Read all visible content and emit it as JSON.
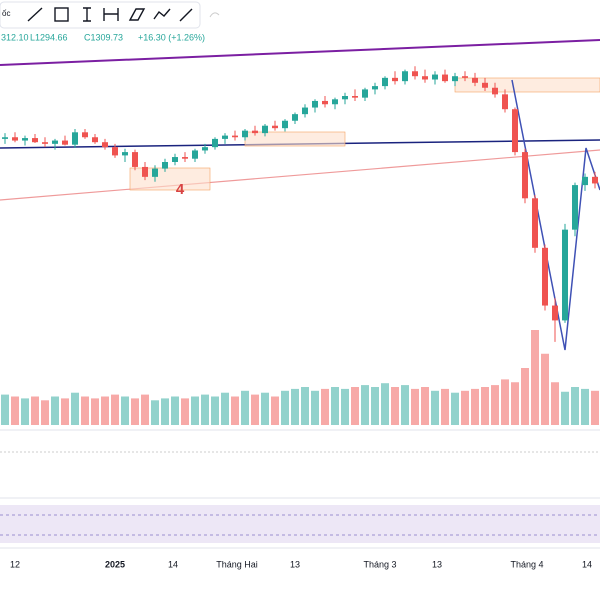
{
  "header": {
    "cut_text": "ốc",
    "high": "312.10",
    "low": "L1294.66",
    "close": "C1309.73",
    "change": "+16.30 (+1.26%)"
  },
  "annotation": "4",
  "x_labels": [
    "12",
    "2025",
    "14",
    "Tháng Hai",
    "13",
    "Tháng 3",
    "13",
    "Tháng 4",
    "14"
  ],
  "chart_data": {
    "type": "candlestick",
    "ylim": [
      1000,
      1400
    ],
    "volume_ylim": [
      0,
      100
    ],
    "up_color": "#26a69a",
    "down_color": "#ef5350",
    "candles": [
      [
        1268,
        1275,
        1262,
        1270
      ],
      [
        1270,
        1276,
        1264,
        1266
      ],
      [
        1266,
        1272,
        1260,
        1269
      ],
      [
        1269,
        1274,
        1263,
        1264
      ],
      [
        1264,
        1270,
        1258,
        1262
      ],
      [
        1262,
        1268,
        1255,
        1266
      ],
      [
        1266,
        1272,
        1260,
        1261
      ],
      [
        1261,
        1280,
        1257,
        1276
      ],
      [
        1276,
        1280,
        1268,
        1270
      ],
      [
        1270,
        1274,
        1262,
        1264
      ],
      [
        1264,
        1268,
        1255,
        1258
      ],
      [
        1258,
        1262,
        1245,
        1248
      ],
      [
        1248,
        1256,
        1240,
        1252
      ],
      [
        1252,
        1255,
        1230,
        1234
      ],
      [
        1234,
        1240,
        1218,
        1222
      ],
      [
        1222,
        1236,
        1216,
        1232
      ],
      [
        1232,
        1244,
        1228,
        1240
      ],
      [
        1240,
        1250,
        1236,
        1246
      ],
      [
        1246,
        1252,
        1240,
        1244
      ],
      [
        1244,
        1256,
        1240,
        1254
      ],
      [
        1254,
        1262,
        1250,
        1258
      ],
      [
        1258,
        1270,
        1255,
        1268
      ],
      [
        1268,
        1275,
        1262,
        1272
      ],
      [
        1272,
        1278,
        1266,
        1270
      ],
      [
        1270,
        1280,
        1266,
        1278
      ],
      [
        1278,
        1284,
        1272,
        1275
      ],
      [
        1275,
        1286,
        1271,
        1284
      ],
      [
        1284,
        1290,
        1278,
        1281
      ],
      [
        1281,
        1292,
        1277,
        1290
      ],
      [
        1290,
        1300,
        1286,
        1298
      ],
      [
        1298,
        1310,
        1294,
        1306
      ],
      [
        1306,
        1316,
        1300,
        1314
      ],
      [
        1314,
        1320,
        1306,
        1310
      ],
      [
        1310,
        1318,
        1304,
        1316
      ],
      [
        1316,
        1324,
        1310,
        1320
      ],
      [
        1320,
        1328,
        1314,
        1318
      ],
      [
        1318,
        1330,
        1314,
        1328
      ],
      [
        1328,
        1336,
        1322,
        1332
      ],
      [
        1332,
        1344,
        1328,
        1342
      ],
      [
        1342,
        1350,
        1334,
        1338
      ],
      [
        1338,
        1352,
        1334,
        1350
      ],
      [
        1350,
        1356,
        1340,
        1344
      ],
      [
        1344,
        1352,
        1336,
        1340
      ],
      [
        1340,
        1350,
        1334,
        1346
      ],
      [
        1346,
        1352,
        1336,
        1338
      ],
      [
        1338,
        1348,
        1332,
        1344
      ],
      [
        1344,
        1350,
        1338,
        1342
      ],
      [
        1342,
        1348,
        1332,
        1336
      ],
      [
        1336,
        1342,
        1326,
        1330
      ],
      [
        1330,
        1336,
        1318,
        1322
      ],
      [
        1322,
        1328,
        1300,
        1304
      ],
      [
        1304,
        1306,
        1248,
        1252
      ],
      [
        1252,
        1256,
        1190,
        1196
      ],
      [
        1196,
        1200,
        1130,
        1136
      ],
      [
        1136,
        1140,
        1060,
        1066
      ],
      [
        1066,
        1075,
        1022,
        1048
      ],
      [
        1048,
        1165,
        1045,
        1158
      ],
      [
        1158,
        1215,
        1150,
        1212
      ],
      [
        1212,
        1226,
        1205,
        1222
      ],
      [
        1222,
        1228,
        1208,
        1214
      ]
    ],
    "volumes": [
      32,
      30,
      28,
      30,
      26,
      30,
      28,
      34,
      30,
      28,
      30,
      32,
      30,
      28,
      32,
      26,
      28,
      30,
      28,
      30,
      32,
      30,
      34,
      30,
      36,
      32,
      34,
      30,
      36,
      38,
      40,
      36,
      38,
      40,
      38,
      40,
      42,
      40,
      44,
      40,
      42,
      38,
      40,
      36,
      38,
      34,
      36,
      38,
      40,
      42,
      48,
      45,
      60,
      100,
      75,
      45,
      35,
      40,
      38,
      36
    ]
  }
}
